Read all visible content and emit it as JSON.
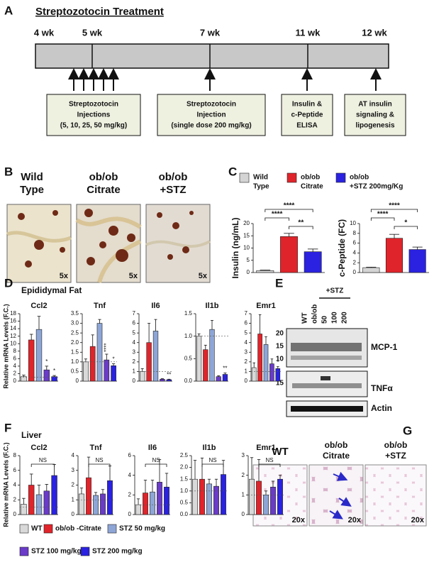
{
  "panels": {
    "A": {
      "label": "A",
      "title": "Streptozotocin Treatment",
      "weeks": [
        "4 wk",
        "5 wk",
        "7 wk",
        "11 wk",
        "12 wk"
      ],
      "boxes": [
        [
          "Streptozotocin",
          "Injections",
          "(5, 10, 25, 50 mg/kg)"
        ],
        [
          "Streptozotocin",
          "Injection",
          "(single dose 200 mg/kg)"
        ],
        [
          "Insulin &",
          "c-Peptide",
          "ELISA"
        ],
        [
          "AT insulin",
          "signaling &",
          "lipogenesis"
        ]
      ]
    },
    "B": {
      "label": "B",
      "groups": [
        [
          "Wild",
          "Type"
        ],
        [
          "ob/ob",
          "Citrate"
        ],
        [
          "ob/ob",
          "+STZ"
        ]
      ],
      "magnification": "5x"
    },
    "C": {
      "label": "C",
      "legend": [
        {
          "name": [
            "Wild",
            "Type"
          ],
          "color": "#d4d4d4"
        },
        {
          "name": [
            "ob/ob",
            "Citrate"
          ],
          "color": "#e0242b"
        },
        {
          "name": [
            "ob/ob",
            "+STZ 200mg/Kg"
          ],
          "color": "#2a22e0"
        }
      ]
    },
    "D": {
      "label": "D",
      "subtitle": "Epididymal Fat",
      "ylabel": "Relative mRNA Levels (F.C.)"
    },
    "E": {
      "label": "E",
      "lanes": [
        "WT",
        "ob/ob",
        "50",
        "100",
        "200"
      ],
      "treatment": "+STZ",
      "markers": [
        20,
        15,
        10,
        15
      ],
      "bands": [
        "MCP-1",
        "TNFα",
        "Actin"
      ]
    },
    "F": {
      "label": "F",
      "subtitle": "Liver",
      "ylabel": "Relative mRNA Levels (F.C.)"
    },
    "G": {
      "label": "G",
      "groups": [
        [
          "WT"
        ],
        [
          "ob/ob",
          "Citrate"
        ],
        [
          "ob/ob",
          "+STZ"
        ]
      ],
      "magnification": "20x"
    }
  },
  "legend": [
    {
      "name": "WT",
      "color": "#d9d9d9"
    },
    {
      "name": "ob/ob -Citrate",
      "color": "#e0242b"
    },
    {
      "name": "STZ 50 mg/kg",
      "color": "#8ea6d6"
    },
    {
      "name": "STZ 100 mg/kg",
      "color": "#6a3cc8"
    },
    {
      "name": "STZ 200 mg/kg",
      "color": "#2a22e0"
    }
  ],
  "chart_data": [
    {
      "type": "bar",
      "ylabel": "Insulin (ng/mL)",
      "ylim": [
        0,
        20
      ],
      "yticks": [
        0,
        5,
        10,
        15,
        20
      ],
      "values": [
        0.8,
        14.7,
        8.5
      ],
      "errors": [
        0.2,
        1.3,
        1.1
      ],
      "brackets": [
        {
          "label": "****"
        },
        {
          "label": "****"
        },
        {
          "label": "**"
        }
      ]
    },
    {
      "type": "bar",
      "ylabel": "c-Peptide (FC)",
      "ylim": [
        0,
        10
      ],
      "yticks": [
        0,
        2,
        4,
        6,
        8,
        10
      ],
      "values": [
        1.0,
        7.0,
        4.7
      ],
      "errors": [
        0.1,
        0.8,
        0.5
      ],
      "brackets": [
        {
          "label": "****"
        },
        {
          "label": "****"
        },
        {
          "label": "*"
        }
      ]
    },
    {
      "type": "bar",
      "title": "Ccl2",
      "ylim": [
        0,
        18
      ],
      "yticks": [
        0,
        2,
        4,
        6,
        8,
        10,
        12,
        14,
        16,
        18
      ],
      "values": [
        1.2,
        11,
        13.8,
        3,
        1.2
      ],
      "errors": [
        0.4,
        1.5,
        3.5,
        1,
        0.3
      ],
      "significance": [
        null,
        null,
        null,
        "*",
        "*"
      ],
      "reference_line": 1
    },
    {
      "type": "bar",
      "title": "Tnf",
      "ylim": [
        0,
        3.5
      ],
      "yticks": [
        0,
        0.5,
        {
          "value": 1,
          "label": "1.0"
        },
        1.5,
        {
          "value": 2,
          "label": "2.0"
        },
        2.5,
        {
          "value": 3,
          "label": "3.0"
        },
        3.5
      ],
      "values": [
        1.0,
        1.8,
        3.0,
        1.1,
        0.8
      ],
      "errors": [
        0.15,
        0.6,
        0.2,
        0.3,
        0.1
      ],
      "significance": [
        null,
        null,
        null,
        "****",
        "*"
      ],
      "reference_line": 1
    },
    {
      "type": "bar",
      "title": "Il6",
      "ylim": [
        0,
        7
      ],
      "yticks": [
        0,
        1,
        2,
        3,
        4,
        5,
        6,
        7
      ],
      "values": [
        1.0,
        4.0,
        5.2,
        0.2,
        0.15
      ],
      "errors": [
        0.3,
        2.0,
        1.2,
        0.05,
        0.05
      ],
      "significance": [
        null,
        null,
        null,
        null,
        "**"
      ],
      "reference_line": 1
    },
    {
      "type": "bar",
      "title": "Il1b",
      "ylim": [
        0,
        1.5
      ],
      "yticks": [
        {
          "value": 0,
          "label": "0.0"
        },
        0.5,
        {
          "value": 1,
          "label": "1.0"
        },
        1.5
      ],
      "values": [
        1.0,
        0.7,
        1.15,
        0.1,
        0.15
      ],
      "errors": [
        0.05,
        0.1,
        0.2,
        0.02,
        0.03
      ],
      "significance": [
        null,
        null,
        null,
        null,
        "**"
      ],
      "reference_line": 1
    },
    {
      "type": "bar",
      "title": "Emr1",
      "ylim": [
        0,
        7
      ],
      "yticks": [
        0,
        1,
        2,
        3,
        4,
        5,
        6,
        7
      ],
      "values": [
        1.4,
        4.9,
        3.8,
        1.8,
        1.3
      ],
      "errors": [
        0.5,
        2.0,
        0.8,
        0.5,
        0.2
      ],
      "significance": [
        null,
        null,
        null,
        null,
        "*"
      ],
      "reference_line": 1
    },
    {
      "type": "bar",
      "title": "Ccl2",
      "ylim": [
        0,
        8
      ],
      "yticks": [
        0,
        2,
        4,
        6,
        8
      ],
      "values": [
        1.4,
        4.0,
        2.7,
        3.2,
        5.3
      ],
      "errors": [
        0.8,
        1.5,
        1.3,
        0.9,
        1.5
      ],
      "brackets": [
        {
          "label": "NS"
        }
      ],
      "reference_line": 1
    },
    {
      "type": "bar",
      "title": "Tnf",
      "ylim": [
        0,
        4
      ],
      "yticks": [
        0,
        1,
        2,
        3,
        4
      ],
      "values": [
        1.4,
        2.5,
        1.3,
        1.4,
        2.3
      ],
      "errors": [
        0.4,
        1.4,
        0.2,
        0.3,
        1.0
      ],
      "brackets": [
        {
          "label": "NS"
        }
      ],
      "reference_line": 1
    },
    {
      "type": "bar",
      "title": "Il6",
      "ylim": [
        0,
        6
      ],
      "yticks": [
        0,
        2,
        4,
        6
      ],
      "values": [
        1.0,
        2.2,
        2.3,
        3.3,
        2.8
      ],
      "errors": [
        0.6,
        1.3,
        1.2,
        2.3,
        1.4
      ],
      "brackets": [
        {
          "label": "NS"
        }
      ],
      "reference_line": 1
    },
    {
      "type": "bar",
      "title": "Il1b",
      "ylim": [
        0,
        2.5
      ],
      "yticks": [
        {
          "value": 0,
          "label": "0.0"
        },
        0.5,
        {
          "value": 1,
          "label": "1.0"
        },
        1.5,
        {
          "value": 2,
          "label": "2.0"
        },
        2.5
      ],
      "values": [
        1.5,
        1.5,
        1.3,
        1.2,
        1.7
      ],
      "errors": [
        0.8,
        0.9,
        0.2,
        0.3,
        0.6
      ],
      "brackets": [
        {
          "label": "NS"
        }
      ],
      "reference_line": 1
    },
    {
      "type": "bar",
      "title": "Emr1",
      "ylim": [
        0,
        3
      ],
      "yticks": [
        0,
        1,
        2,
        3
      ],
      "values": [
        1.8,
        1.7,
        1.0,
        1.4,
        1.8
      ],
      "errors": [
        1.1,
        1.1,
        0.2,
        0.3,
        0.2
      ],
      "brackets": [
        {
          "label": "NS"
        }
      ],
      "reference_line": 1
    }
  ]
}
